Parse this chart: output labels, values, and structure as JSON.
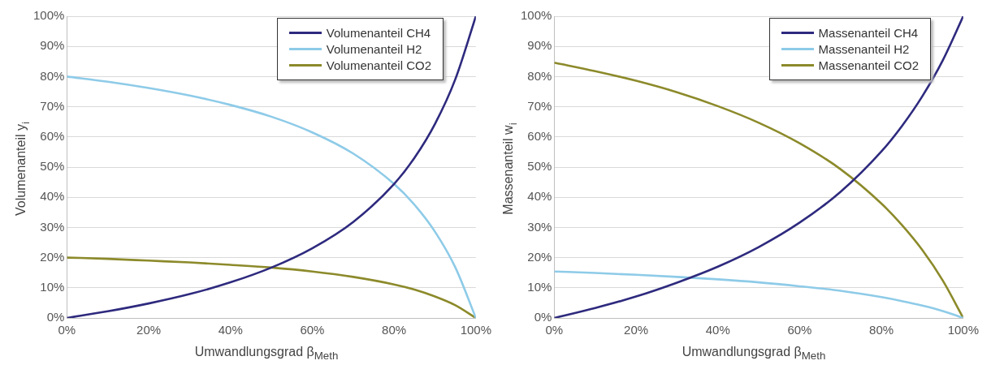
{
  "chart_data": [
    {
      "type": "line",
      "xlabel": "Umwandlungsgrad β$_{Meth}$",
      "ylabel": "Volumenanteil y$_{i}$",
      "x": [
        0,
        10,
        20,
        30,
        40,
        50,
        60,
        70,
        80,
        85,
        90,
        95,
        100
      ],
      "xlim": [
        0,
        100
      ],
      "xticks": [
        {
          "value": 0,
          "label": "0%"
        },
        {
          "value": 20,
          "label": "20%"
        },
        {
          "value": 40,
          "label": "40%"
        },
        {
          "value": 60,
          "label": "60%"
        },
        {
          "value": 80,
          "label": "80%"
        },
        {
          "value": 100,
          "label": "100%"
        }
      ],
      "ylim": [
        0,
        100
      ],
      "yticks": [
        {
          "value": 0,
          "label": "0%"
        },
        {
          "value": 10,
          "label": "10%"
        },
        {
          "value": 20,
          "label": "20%"
        },
        {
          "value": 30,
          "label": "30%"
        },
        {
          "value": 40,
          "label": "40%"
        },
        {
          "value": 50,
          "label": "50%"
        },
        {
          "value": 60,
          "label": "60%"
        },
        {
          "value": 70,
          "label": "70%"
        },
        {
          "value": 80,
          "label": "80%"
        },
        {
          "value": 90,
          "label": "90%"
        },
        {
          "value": 100,
          "label": "100%"
        }
      ],
      "grid": "y",
      "legend": "top right",
      "marker": "none",
      "line_style": "solid",
      "series": [
        {
          "name": "Volumenanteil CH4",
          "color": "#2e2a7e",
          "values": [
            0,
            2.2,
            4.8,
            7.9,
            11.8,
            16.7,
            23.1,
            31.8,
            44.4,
            53.1,
            64.3,
            79.2,
            100
          ]
        },
        {
          "name": "Volumenanteil H2",
          "color": "#8ecbe8",
          "values": [
            80,
            78.3,
            76.2,
            73.7,
            70.6,
            66.7,
            61.5,
            54.5,
            44.4,
            37.5,
            28.6,
            16.7,
            0
          ]
        },
        {
          "name": "Volumenanteil CO2",
          "color": "#8c8a2a",
          "values": [
            20,
            19.6,
            19.0,
            18.4,
            17.6,
            16.7,
            15.4,
            13.6,
            11.1,
            9.4,
            7.1,
            4.2,
            0
          ]
        }
      ]
    },
    {
      "type": "line",
      "xlabel": "Umwandlungsgrad β$_{Meth}$",
      "ylabel": "Massenanteil w$_{i}$",
      "x": [
        0,
        10,
        20,
        30,
        40,
        50,
        60,
        70,
        80,
        85,
        90,
        95,
        100
      ],
      "xlim": [
        0,
        100
      ],
      "xticks": [
        {
          "value": 0,
          "label": "0%"
        },
        {
          "value": 20,
          "label": "20%"
        },
        {
          "value": 40,
          "label": "40%"
        },
        {
          "value": 60,
          "label": "60%"
        },
        {
          "value": 80,
          "label": "80%"
        },
        {
          "value": 100,
          "label": "100%"
        }
      ],
      "ylim": [
        0,
        100
      ],
      "yticks": [
        {
          "value": 0,
          "label": "0%"
        },
        {
          "value": 10,
          "label": "10%"
        },
        {
          "value": 20,
          "label": "20%"
        },
        {
          "value": 30,
          "label": "30%"
        },
        {
          "value": 40,
          "label": "40%"
        },
        {
          "value": 50,
          "label": "50%"
        },
        {
          "value": 60,
          "label": "60%"
        },
        {
          "value": 70,
          "label": "70%"
        },
        {
          "value": 80,
          "label": "80%"
        },
        {
          "value": 90,
          "label": "90%"
        },
        {
          "value": 100,
          "label": "100%"
        }
      ],
      "grid": "y",
      "legend": "top right",
      "marker": "none",
      "line_style": "solid",
      "series": [
        {
          "name": "Massenanteil CH4",
          "color": "#2e2a7e",
          "values": [
            0,
            3.3,
            7.1,
            11.7,
            17.0,
            23.5,
            31.6,
            41.8,
            55.2,
            63.6,
            73.5,
            85.4,
            100
          ]
        },
        {
          "name": "Massenanteil H2",
          "color": "#8ecbe8",
          "values": [
            15.4,
            14.9,
            14.3,
            13.6,
            12.8,
            11.8,
            10.5,
            9.0,
            6.9,
            5.6,
            4.1,
            2.3,
            0
          ]
        },
        {
          "name": "Massenanteil CO2",
          "color": "#8c8a2a",
          "values": [
            84.6,
            81.8,
            78.6,
            74.8,
            70.2,
            64.7,
            57.9,
            49.3,
            37.9,
            30.8,
            22.5,
            12.4,
            0
          ]
        }
      ]
    }
  ]
}
